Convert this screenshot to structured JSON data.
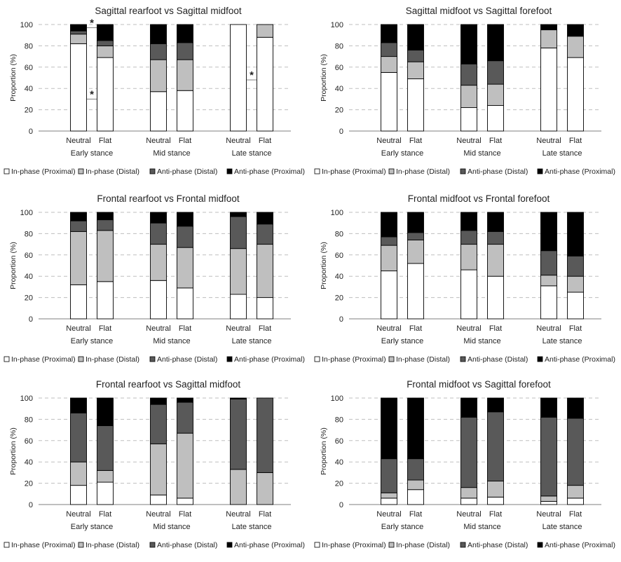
{
  "colors": {
    "in_phase_proximal": "#ffffff",
    "in_phase_distal": "#bfbfbf",
    "anti_phase_distal": "#595959",
    "anti_phase_proximal": "#000000",
    "grid": "#bfbfbf",
    "axis": "#7f7f7f"
  },
  "chart_data": [
    {
      "type": "bar",
      "stacked": true,
      "title": "Sagittal rearfoot vs Sagittal midfoot",
      "ylabel": "Proportion (%)",
      "ylim": [
        0,
        100
      ],
      "yticks": [
        0,
        20,
        40,
        60,
        80,
        100
      ],
      "grid": true,
      "legend_position": "bottom",
      "categories": [
        "Neutral",
        "Flat",
        "Neutral",
        "Flat",
        "Neutral",
        "Flat"
      ],
      "groups": [
        "Early stance",
        "Mid stance",
        "Late stance"
      ],
      "series": [
        {
          "name": "In-phase (Proximal)",
          "values": [
            82,
            69,
            37,
            38,
            100,
            88
          ]
        },
        {
          "name": "In-phase (Distal)",
          "values": [
            9,
            11,
            30,
            29,
            0,
            12
          ]
        },
        {
          "name": "Anti-phase (Distal)",
          "values": [
            3,
            5,
            15,
            16,
            0,
            0
          ]
        },
        {
          "name": "Anti-phase (Proximal)",
          "values": [
            6,
            15,
            18,
            17,
            0,
            0
          ]
        }
      ],
      "annotations": [
        {
          "text": "*",
          "group": "Early stance",
          "y": 97
        },
        {
          "text": "*",
          "group": "Early stance",
          "y": 30
        },
        {
          "text": "*",
          "group": "Late stance",
          "y": 48
        }
      ]
    },
    {
      "type": "bar",
      "stacked": true,
      "title": "Sagittal midfoot vs Sagittal forefoot",
      "ylabel": "Proportion (%)",
      "ylim": [
        0,
        100
      ],
      "yticks": [
        0,
        20,
        40,
        60,
        80,
        100
      ],
      "grid": true,
      "legend_position": "bottom",
      "categories": [
        "Neutral",
        "Flat",
        "Neutral",
        "Flat",
        "Neutral",
        "Flat"
      ],
      "groups": [
        "Early stance",
        "Mid stance",
        "Late stance"
      ],
      "series": [
        {
          "name": "In-phase (Proximal)",
          "values": [
            55,
            49,
            22,
            24,
            78,
            69
          ]
        },
        {
          "name": "In-phase (Distal)",
          "values": [
            15,
            16,
            21,
            20,
            17,
            20
          ]
        },
        {
          "name": "Anti-phase (Distal)",
          "values": [
            13,
            11,
            20,
            22,
            0,
            0
          ]
        },
        {
          "name": "Anti-phase (Proximal)",
          "values": [
            17,
            24,
            37,
            34,
            5,
            11
          ]
        }
      ],
      "annotations": []
    },
    {
      "type": "bar",
      "stacked": true,
      "title": "Frontal rearfoot vs Frontal midfoot",
      "ylabel": "Proportion (%)",
      "ylim": [
        0,
        100
      ],
      "yticks": [
        0,
        20,
        40,
        60,
        80,
        100
      ],
      "grid": true,
      "legend_position": "bottom",
      "categories": [
        "Neutral",
        "Flat",
        "Neutral",
        "Flat",
        "Neutral",
        "Flat"
      ],
      "groups": [
        "Early stance",
        "Mid stance",
        "Late stance"
      ],
      "series": [
        {
          "name": "In-phase (Proximal)",
          "values": [
            32,
            35,
            36,
            29,
            23,
            20
          ]
        },
        {
          "name": "In-phase (Distal)",
          "values": [
            50,
            48,
            34,
            38,
            43,
            50
          ]
        },
        {
          "name": "Anti-phase (Distal)",
          "values": [
            10,
            10,
            20,
            20,
            30,
            19
          ]
        },
        {
          "name": "Anti-phase (Proximal)",
          "values": [
            8,
            7,
            10,
            13,
            4,
            11
          ]
        }
      ],
      "annotations": []
    },
    {
      "type": "bar",
      "stacked": true,
      "title": "Frontal midfoot vs Frontal forefoot",
      "ylabel": "Proportion (%)",
      "ylim": [
        0,
        100
      ],
      "yticks": [
        0,
        20,
        40,
        60,
        80,
        100
      ],
      "grid": true,
      "legend_position": "bottom",
      "categories": [
        "Neutral",
        "Flat",
        "Neutral",
        "Flat",
        "Neutral",
        "Flat"
      ],
      "groups": [
        "Early stance",
        "Mid stance",
        "Late stance"
      ],
      "series": [
        {
          "name": "In-phase (Proximal)",
          "values": [
            45,
            52,
            46,
            40,
            31,
            25
          ]
        },
        {
          "name": "In-phase (Distal)",
          "values": [
            24,
            22,
            24,
            30,
            10,
            15
          ]
        },
        {
          "name": "Anti-phase (Distal)",
          "values": [
            8,
            7,
            13,
            12,
            23,
            19
          ]
        },
        {
          "name": "Anti-phase (Proximal)",
          "values": [
            23,
            19,
            17,
            18,
            36,
            41
          ]
        }
      ],
      "annotations": []
    },
    {
      "type": "bar",
      "stacked": true,
      "title": "Frontal rearfoot vs Sagittal midfoot",
      "ylabel": "Proportion (%)",
      "ylim": [
        0,
        100
      ],
      "yticks": [
        0,
        20,
        40,
        60,
        80,
        100
      ],
      "grid": true,
      "legend_position": "bottom",
      "categories": [
        "Neutral",
        "Flat",
        "Neutral",
        "Flat",
        "Neutral",
        "Flat"
      ],
      "groups": [
        "Early stance",
        "Mid stance",
        "Late stance"
      ],
      "series": [
        {
          "name": "In-phase (Proximal)",
          "values": [
            18,
            21,
            9,
            6,
            0,
            0
          ]
        },
        {
          "name": "In-phase (Distal)",
          "values": [
            22,
            11,
            48,
            61,
            33,
            30
          ]
        },
        {
          "name": "Anti-phase (Distal)",
          "values": [
            46,
            42,
            37,
            29,
            66,
            70
          ]
        },
        {
          "name": "Anti-phase (Proximal)",
          "values": [
            14,
            26,
            6,
            4,
            1,
            0
          ]
        }
      ],
      "annotations": []
    },
    {
      "type": "bar",
      "stacked": true,
      "title": "Frontal midfoot vs Sagittal forefoot",
      "ylabel": "Proportion (%)",
      "ylim": [
        0,
        100
      ],
      "yticks": [
        0,
        20,
        40,
        60,
        80,
        100
      ],
      "grid": true,
      "legend_position": "bottom",
      "categories": [
        "Neutral",
        "Flat",
        "Neutral",
        "Flat",
        "Neutral",
        "Flat"
      ],
      "groups": [
        "Early stance",
        "Mid stance",
        "Late stance"
      ],
      "series": [
        {
          "name": "In-phase (Proximal)",
          "values": [
            6,
            14,
            6,
            7,
            3,
            6
          ]
        },
        {
          "name": "In-phase (Distal)",
          "values": [
            5,
            9,
            10,
            15,
            5,
            12
          ]
        },
        {
          "name": "Anti-phase (Distal)",
          "values": [
            32,
            20,
            66,
            65,
            74,
            63
          ]
        },
        {
          "name": "Anti-phase (Proximal)",
          "values": [
            57,
            57,
            18,
            13,
            18,
            19
          ]
        }
      ],
      "annotations": []
    }
  ]
}
